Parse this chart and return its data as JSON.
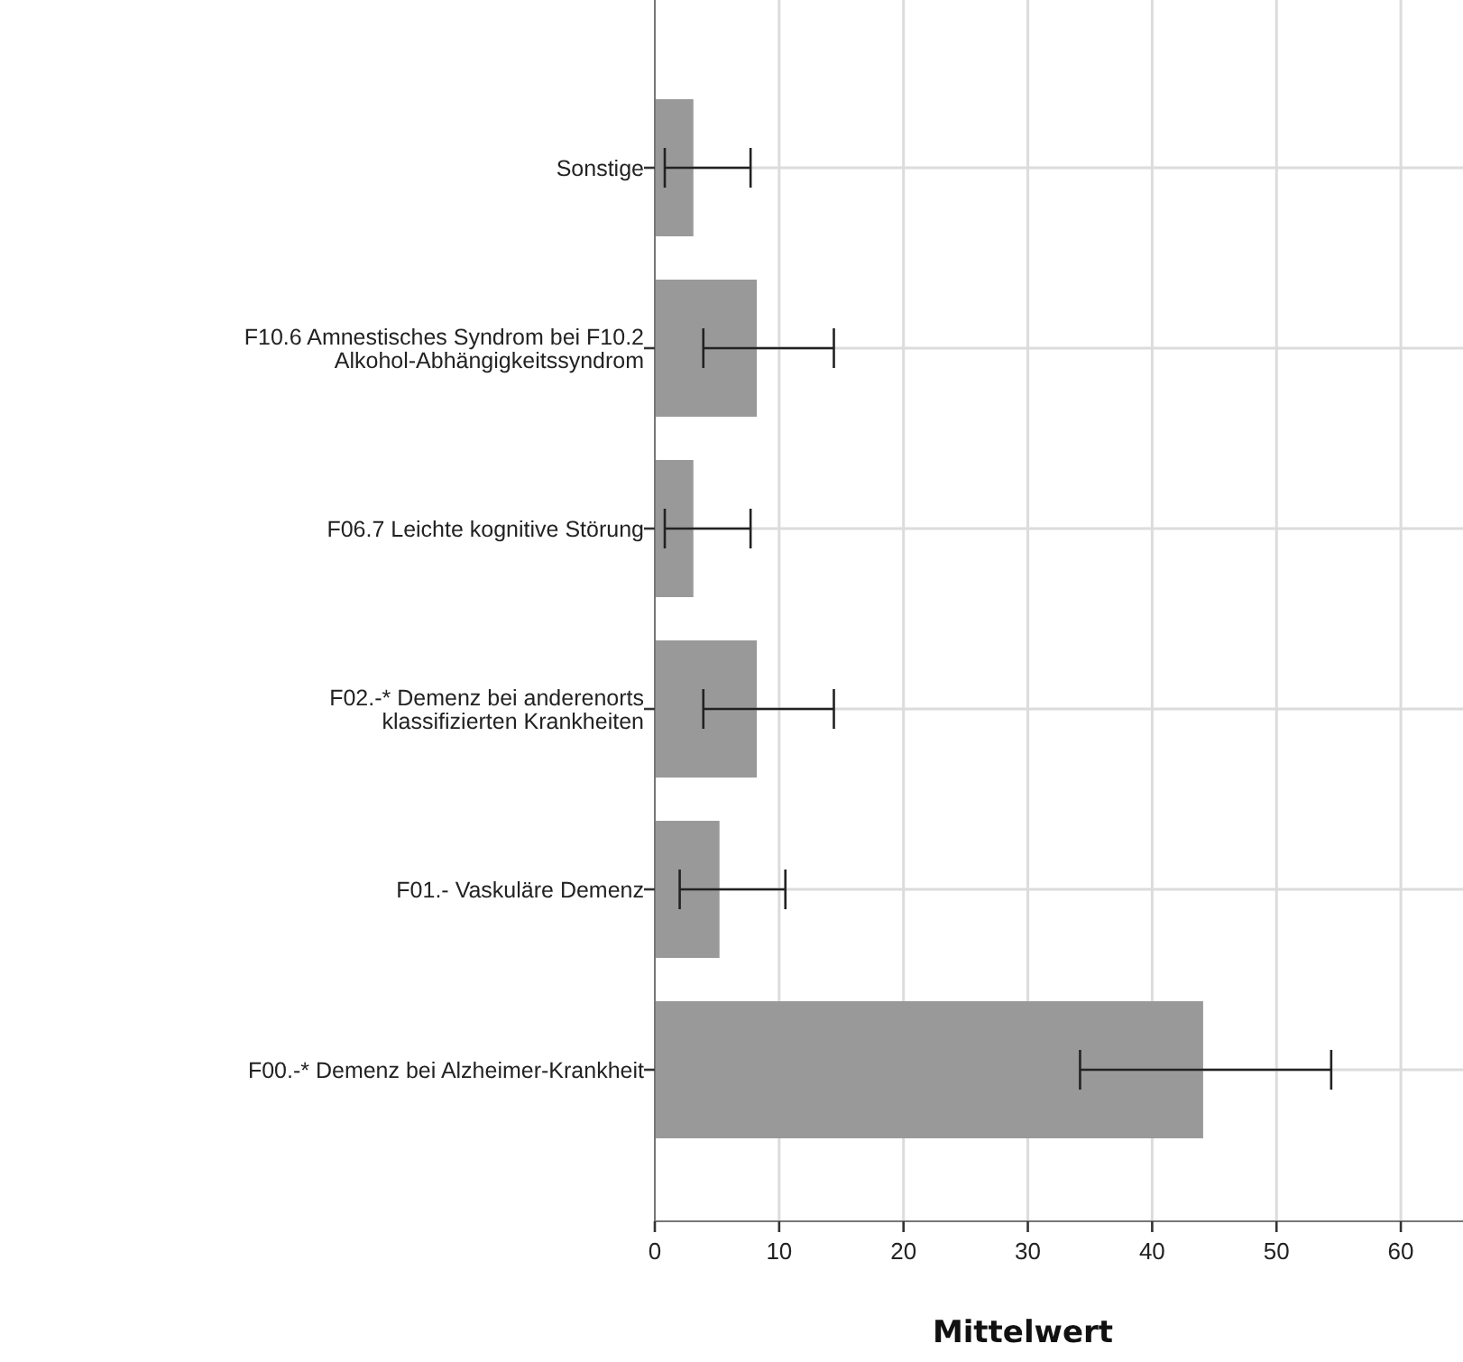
{
  "chart_data": {
    "type": "bar",
    "orientation": "horizontal",
    "xlabel": "Mittelwert",
    "categories": [
      "Sonstige",
      "F10.6 Amnestisches Syndrom bei F10.2\nAlkohol-Abhängigkeitssyndrom",
      "F06.7 Leichte kognitive Störung",
      "F02.-* Demenz bei anderenorts\nklassifizierten Krankheiten",
      "F01.- Vaskuläre Demenz",
      "F00.-* Demenz bei Alzheimer-Krankheit"
    ],
    "values": [
      3.1,
      8.2,
      3.1,
      8.2,
      5.2,
      44.1
    ],
    "errors": [
      [
        0.8,
        7.7
      ],
      [
        3.9,
        14.4
      ],
      [
        0.8,
        7.7
      ],
      [
        3.9,
        14.4
      ],
      [
        2.0,
        10.5
      ],
      [
        34.2,
        54.4
      ]
    ],
    "color": "#999999",
    "xlim": [
      0,
      65
    ],
    "xticks": [
      0,
      10,
      20,
      30,
      40,
      50,
      60
    ],
    "grid": true
  }
}
